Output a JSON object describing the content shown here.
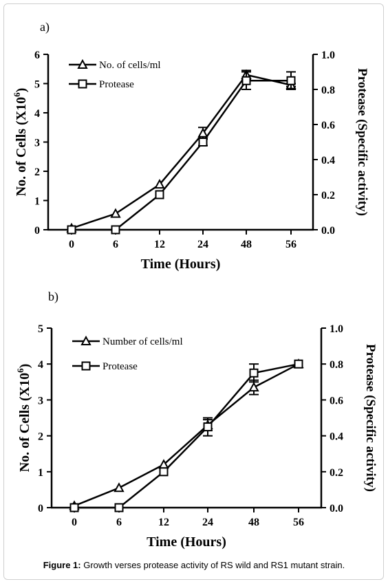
{
  "caption": {
    "label": "Figure 1:",
    "text": " Growth verses protease activity of RS wild and RS1 mutant strain."
  },
  "chart_data": [
    {
      "type": "line",
      "panel_label": "a)",
      "categories": [
        "0",
        "6",
        "12",
        "24",
        "48",
        "56"
      ],
      "xlabel": "Time (Hours)",
      "ylabel_left": {
        "text": "No. of Cells (X10",
        "sup": "6",
        "end": ")"
      },
      "ylabel_right": "Protease (Specific activity)",
      "ylim_left": [
        0,
        6
      ],
      "ylim_right": [
        0,
        1.0
      ],
      "yticks_left": [
        "0",
        "1",
        "2",
        "3",
        "4",
        "5",
        "6"
      ],
      "yticks_right": [
        "0.0",
        "0.2",
        "0.4",
        "0.6",
        "0.8",
        "1.0"
      ],
      "legend_position": "top-left",
      "series": [
        {
          "name": "No. of cells/ml",
          "marker": "triangle",
          "axis": "left",
          "values": [
            0.05,
            0.55,
            1.55,
            3.3,
            5.3,
            4.95
          ],
          "errors": [
            0,
            0,
            0,
            0.2,
            0.15,
            0.05
          ]
        },
        {
          "name": "Protease",
          "marker": "square",
          "axis": "right",
          "values": [
            0.0,
            0.0,
            0.2,
            0.5,
            0.85,
            0.85
          ],
          "errors": [
            0,
            0,
            0,
            0.02,
            0.05,
            0.05
          ]
        }
      ]
    },
    {
      "type": "line",
      "panel_label": "b)",
      "categories": [
        "0",
        "6",
        "12",
        "24",
        "48",
        "56"
      ],
      "xlabel": "Time (Hours)",
      "ylabel_left": {
        "text": "No. of Cells (X10",
        "sup": "6",
        "end": ")"
      },
      "ylabel_right": "Protease (Specific activity)",
      "ylim_left": [
        0,
        5
      ],
      "ylim_right": [
        0,
        1.0
      ],
      "yticks_left": [
        "0",
        "1",
        "2",
        "3",
        "4",
        "5"
      ],
      "yticks_right": [
        "0.0",
        "0.2",
        "0.4",
        "0.6",
        "0.8",
        "1.0"
      ],
      "legend_position": "top-left",
      "series": [
        {
          "name": "Number of cells/ml",
          "marker": "triangle",
          "axis": "left",
          "values": [
            0.05,
            0.55,
            1.2,
            2.3,
            3.35,
            4.0
          ],
          "errors": [
            0,
            0,
            0,
            0.15,
            0.2,
            0
          ]
        },
        {
          "name": "Protease",
          "marker": "square",
          "axis": "right",
          "values": [
            0.0,
            0.0,
            0.2,
            0.45,
            0.75,
            0.8
          ],
          "errors": [
            0,
            0,
            0,
            0.05,
            0.05,
            0
          ]
        }
      ]
    }
  ]
}
